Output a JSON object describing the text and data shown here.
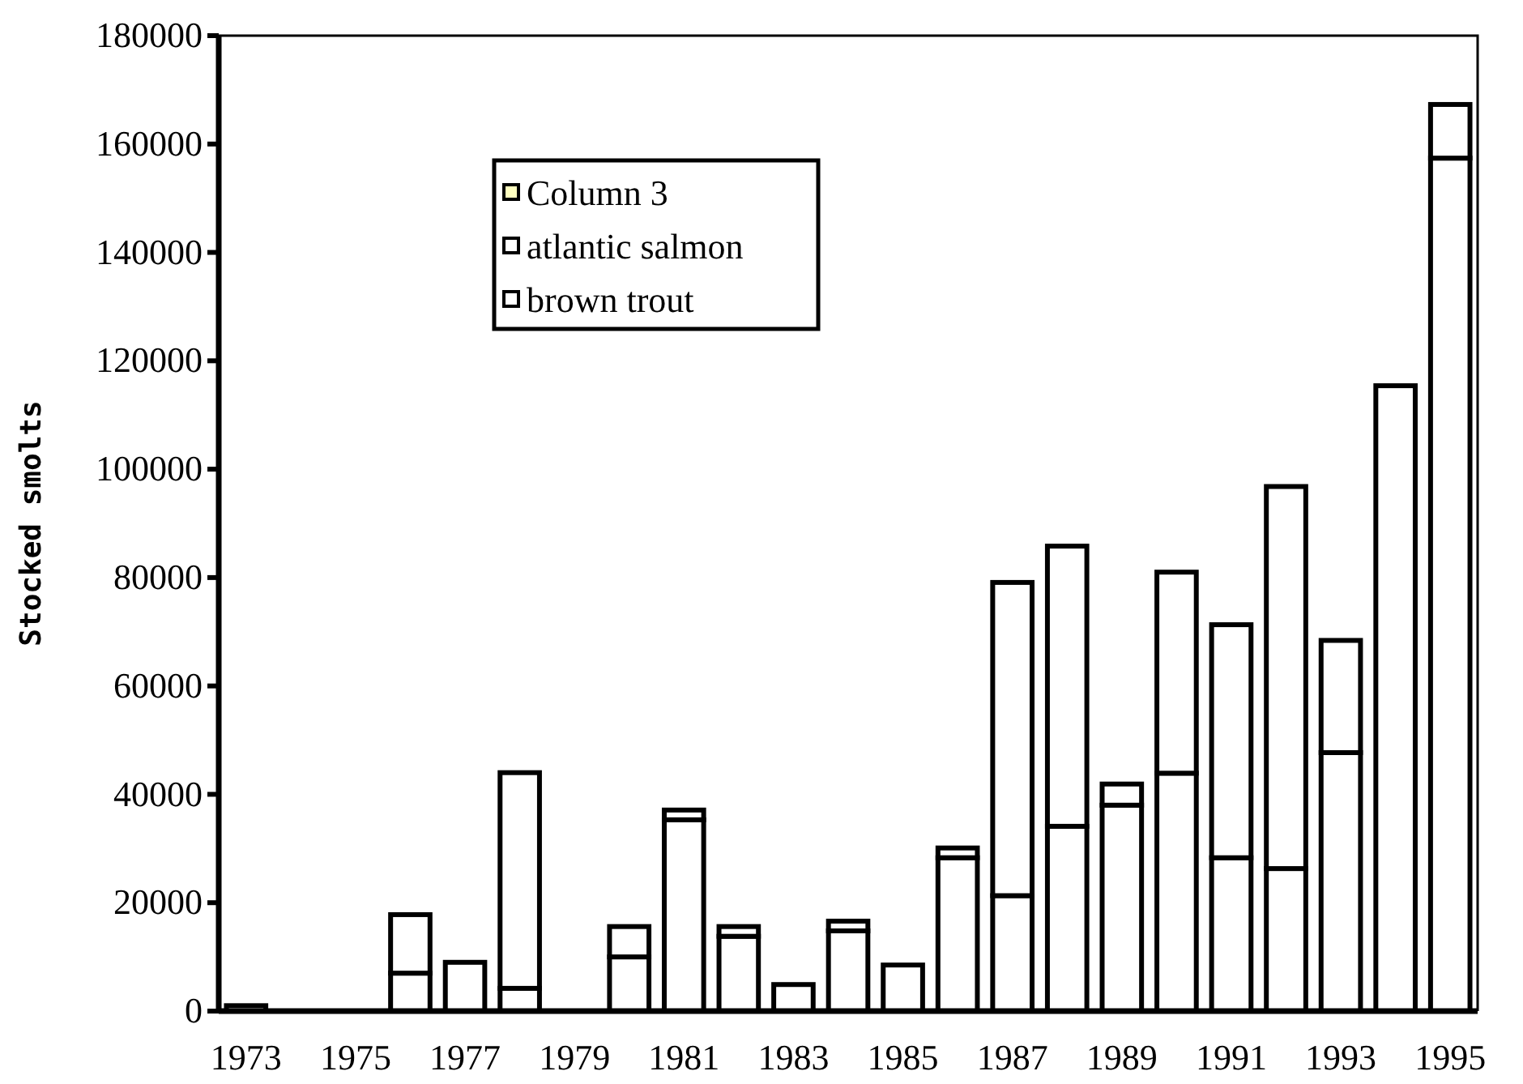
{
  "chart_data": {
    "type": "bar",
    "stacked": true,
    "ylabel": "Stocked smolts",
    "categories": [
      "1973",
      null,
      "1975",
      null,
      "1977",
      null,
      "1979",
      null,
      "1981",
      null,
      "1983",
      null,
      "1985",
      null,
      "1987",
      null,
      "1989",
      null,
      "1991",
      null,
      "1993",
      null,
      "1995"
    ],
    "series": [
      {
        "name": "brown trout",
        "color": "#ffffff",
        "values": [
          1000,
          null,
          null,
          7000,
          9000,
          4200,
          null,
          10000,
          35300,
          13800,
          4900,
          14800,
          8500,
          28300,
          21300,
          34100,
          38000,
          43900,
          28300,
          26300,
          47700,
          115400,
          157400
        ]
      },
      {
        "name": "atlantic salmon",
        "color": "#ffffff",
        "values": [
          null,
          null,
          null,
          10800,
          null,
          39800,
          null,
          5600,
          1800,
          1800,
          null,
          1800,
          null,
          1800,
          57800,
          51700,
          3900,
          37100,
          43000,
          70500,
          20700,
          null,
          9900
        ]
      },
      {
        "name": "Column 3",
        "color": "#ffffc0",
        "values": [
          null,
          null,
          null,
          null,
          null,
          null,
          null,
          null,
          null,
          null,
          null,
          null,
          null,
          null,
          null,
          null,
          null,
          null,
          null,
          null,
          null,
          null,
          null
        ]
      }
    ],
    "ylim": [
      0,
      180000
    ],
    "yticks": [
      0,
      20000,
      40000,
      60000,
      80000,
      100000,
      120000,
      140000,
      160000,
      180000
    ],
    "grid": false,
    "legend": "top left"
  }
}
